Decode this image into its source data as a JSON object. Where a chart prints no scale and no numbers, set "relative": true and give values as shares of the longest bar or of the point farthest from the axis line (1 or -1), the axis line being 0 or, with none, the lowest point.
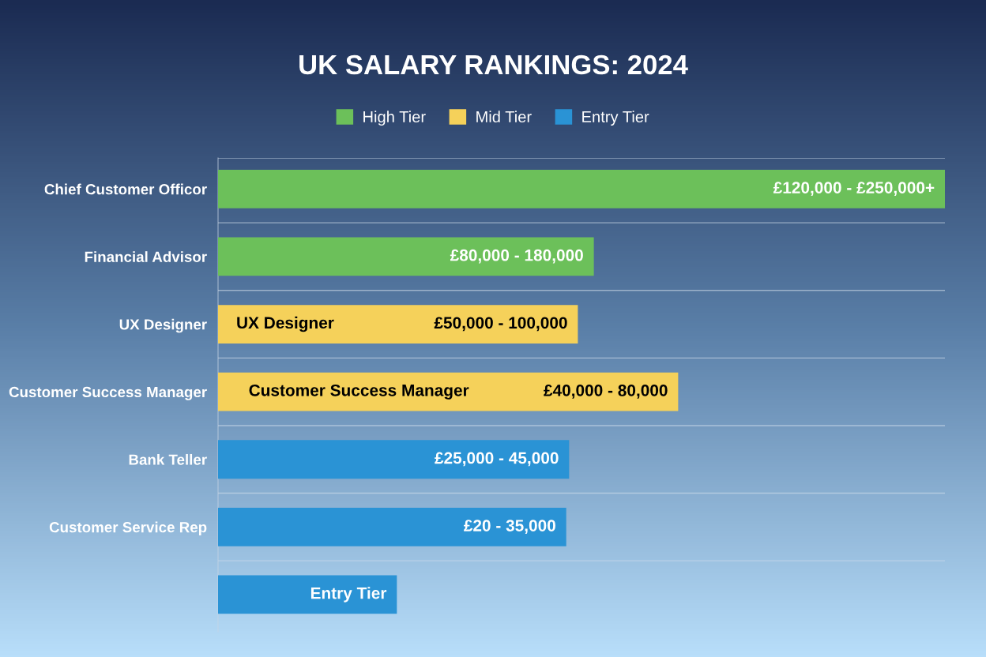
{
  "chart_data": {
    "type": "bar",
    "orientation": "horizontal",
    "relative": true,
    "title": "UK SALARY RANKINGS: 2024",
    "categories": [
      "Chief Customer Officor",
      "Financial Advisor",
      "UX Designer",
      "Customer Success Manager",
      "Bank Teller",
      "Customer Service Rep",
      null
    ],
    "series": [
      {
        "name": "High Tier",
        "color": "#6cc05a",
        "values": [
          1,
          0.517,
          null,
          null,
          null,
          null,
          null
        ]
      },
      {
        "name": "Mid Tier",
        "color": "#f5d15a",
        "values": [
          null,
          null,
          0.495,
          0.633,
          null,
          null,
          null
        ]
      },
      {
        "name": "Entry Tier",
        "color": "#2a93d5",
        "values": [
          null,
          null,
          null,
          null,
          0.483,
          0.479,
          0.246
        ]
      }
    ],
    "value_labels": [
      "£120,000 - £250,000+",
      "£80,000 - 180,000",
      "£50,000 - 100,000",
      "£40,000 - 80,000",
      "£25,000 - 45,000",
      "£20 - 35,000",
      "Entry Tier"
    ],
    "annotations": [
      "UX Designer",
      "Customer Success Manager"
    ],
    "legend": "top",
    "grid": "y"
  }
}
